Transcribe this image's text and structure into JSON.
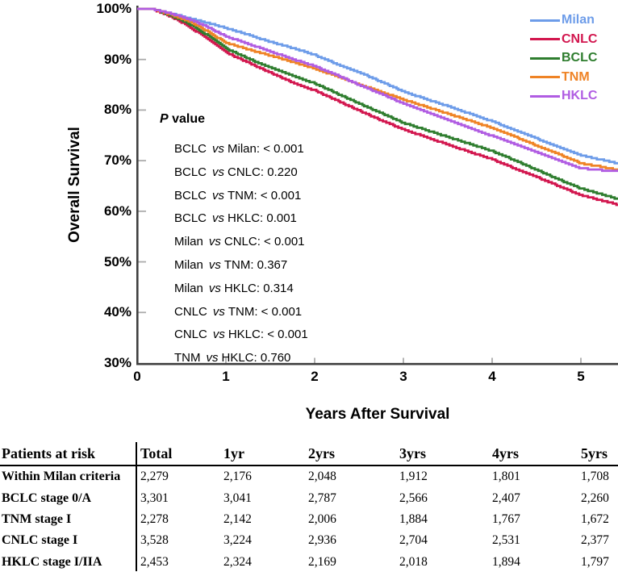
{
  "chart": {
    "y_axis_title": "Overall Survival",
    "x_axis_title": "Years After Survival",
    "y_tick_labels": [
      "100%",
      "90%",
      "80%",
      "70%",
      "60%",
      "50%",
      "40%",
      "30%"
    ],
    "x_tick_labels": [
      "0",
      "1",
      "2",
      "3",
      "4",
      "5"
    ]
  },
  "chart_data": {
    "type": "line",
    "subtype": "kaplan-meier-survival",
    "title": "",
    "xlabel": "Years After Survival",
    "ylabel": "Overall Survival",
    "xlim": [
      0,
      5.42
    ],
    "ylim": [
      30,
      100
    ],
    "x_ticks": [
      0,
      1,
      2,
      3,
      4,
      5
    ],
    "y_ticks": [
      100,
      90,
      80,
      70,
      60,
      50,
      40,
      30
    ],
    "grid": false,
    "legend_position": "top-right",
    "x": [
      0,
      0.18,
      0.38,
      0.58,
      0.78,
      1,
      1.25,
      1.5,
      1.75,
      2,
      2.25,
      2.5,
      2.75,
      3,
      3.25,
      3.5,
      3.75,
      4,
      4.25,
      4.5,
      4.75,
      5,
      5.2,
      5.42
    ],
    "series": [
      {
        "name": "Milan",
        "color": "#6D9CE9",
        "values": [
          100,
          100,
          99.2,
          98.3,
          97.4,
          96.3,
          95.0,
          93.6,
          92.4,
          91.0,
          89.2,
          87.6,
          85.7,
          83.8,
          82.3,
          80.9,
          79.4,
          77.9,
          76.2,
          74.5,
          72.8,
          71.2,
          70.4,
          69.6
        ]
      },
      {
        "name": "CNLC",
        "color": "#D2164E",
        "values": [
          100,
          100,
          98.6,
          96.7,
          94.3,
          91.5,
          89.5,
          87.5,
          85.6,
          84.0,
          82.0,
          80.0,
          78.1,
          76.3,
          74.8,
          73.3,
          71.8,
          70.4,
          68.6,
          66.9,
          65.1,
          63.3,
          62.4,
          61.4
        ]
      },
      {
        "name": "BCLC",
        "color": "#2E7D2E",
        "values": [
          100,
          100,
          98.8,
          97.2,
          95.0,
          92.3,
          90.3,
          88.5,
          86.9,
          85.4,
          83.4,
          81.4,
          79.5,
          77.6,
          76.2,
          74.8,
          73.4,
          72.0,
          70.2,
          68.3,
          66.4,
          64.6,
          63.6,
          62.5
        ]
      },
      {
        "name": "TNM",
        "color": "#EF8325",
        "values": [
          100,
          100,
          99.0,
          97.7,
          95.8,
          93.4,
          92.1,
          90.9,
          89.6,
          88.3,
          86.8,
          85.2,
          83.7,
          82.2,
          80.8,
          79.4,
          78.0,
          76.6,
          74.9,
          73.1,
          71.4,
          69.6,
          69.0,
          68.3
        ]
      },
      {
        "name": "HKLC",
        "color": "#B05CE2",
        "values": [
          100,
          100,
          99.2,
          98.1,
          96.6,
          94.7,
          93.2,
          91.7,
          90.2,
          88.8,
          87.0,
          85.1,
          83.3,
          81.4,
          79.8,
          78.2,
          76.6,
          75.0,
          73.4,
          71.8,
          70.2,
          68.6,
          68.3,
          68.0
        ]
      }
    ],
    "p_annotations": {
      "title_italic": "P",
      "title_rest": " value",
      "vs_word": "vs",
      "entries": [
        {
          "left": "BCLC",
          "right": "Milan: < 0.001"
        },
        {
          "left": "BCLC",
          "right": "CNLC: 0.220"
        },
        {
          "left": "BCLC",
          "right": "TNM: < 0.001"
        },
        {
          "left": "BCLC",
          "right": "HKLC: 0.001"
        },
        {
          "left": "Milan",
          "right": "CNLC: < 0.001"
        },
        {
          "left": "Milan",
          "right": "TNM: 0.367"
        },
        {
          "left": "Milan",
          "right": "HKLC: 0.314"
        },
        {
          "left": "CNLC",
          "right": "TNM: < 0.001"
        },
        {
          "left": "CNLC",
          "right": "HKLC: < 0.001"
        },
        {
          "left": "TNM",
          "right": "HKLC: 0.760"
        }
      ]
    }
  },
  "table": {
    "header": [
      "Patients at risk",
      "Total",
      "1yr",
      "2yrs",
      "3yrs",
      "4yrs",
      "5yrs"
    ],
    "rows": [
      {
        "label": "Within Milan criteria",
        "values": [
          "2,279",
          "2,176",
          "2,048",
          "1,912",
          "1,801",
          "1,708"
        ]
      },
      {
        "label": "BCLC stage 0/A",
        "values": [
          "3,301",
          "3,041",
          "2,787",
          "2,566",
          "2,407",
          "2,260"
        ]
      },
      {
        "label": "TNM stage I",
        "values": [
          "2,278",
          "2,142",
          "2,006",
          "1,884",
          "1,767",
          "1,672"
        ]
      },
      {
        "label": "CNLC stage I",
        "values": [
          "3,528",
          "3,224",
          "2,936",
          "2,704",
          "2,531",
          "2,377"
        ]
      },
      {
        "label": "HKLC stage I/IIA",
        "values": [
          "2,453",
          "2,324",
          "2,169",
          "2,018",
          "1,894",
          "1,797"
        ]
      }
    ]
  },
  "colors": {
    "axis": "#3F3F3F",
    "tick": "#ABABAB",
    "text": "#000000",
    "background": "#FFFFFF"
  }
}
